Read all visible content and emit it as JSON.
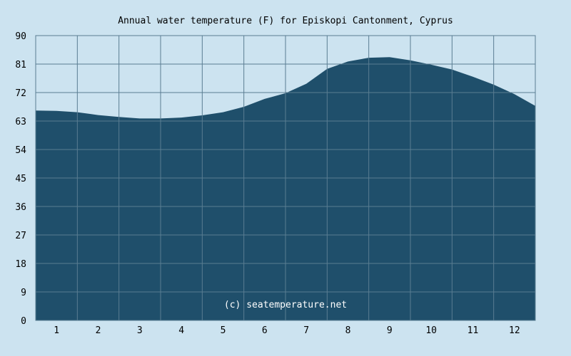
{
  "chart_data": {
    "type": "area",
    "title": "Annual water temperature (F) for Episkopi Cantonment, Cyprus",
    "xlabel": "",
    "ylabel": "",
    "credit": "(c) seatemperature.net",
    "x_tick_labels": [
      "1",
      "2",
      "3",
      "4",
      "5",
      "6",
      "7",
      "8",
      "9",
      "10",
      "11",
      "12"
    ],
    "y_tick_labels": [
      "0",
      "9",
      "18",
      "27",
      "36",
      "45",
      "54",
      "63",
      "72",
      "81",
      "90"
    ],
    "ylim": [
      0,
      90
    ],
    "xlim": [
      0,
      12
    ],
    "grid": true,
    "colors": {
      "background": "#cce3f0",
      "plot_background": "#1f4f6b",
      "fill": "#1f4f6b",
      "grid": "#5a7d92"
    },
    "series": [
      {
        "x": [
          0,
          0.5,
          1,
          1.5,
          2,
          2.5,
          3,
          3.5,
          4,
          4.5,
          5,
          5.5,
          6,
          6.5,
          7,
          7.5,
          8,
          8.5,
          9,
          9.5,
          10,
          10.5,
          11,
          11.5,
          12
        ],
        "values": [
          66.3,
          66.2,
          65.8,
          64.9,
          64.3,
          63.8,
          63.8,
          64.1,
          64.8,
          65.8,
          67.5,
          70.0,
          71.8,
          74.8,
          79.5,
          81.8,
          83.0,
          83.2,
          82.2,
          80.8,
          79.3,
          77.0,
          74.5,
          71.5,
          67.8
        ]
      }
    ]
  }
}
